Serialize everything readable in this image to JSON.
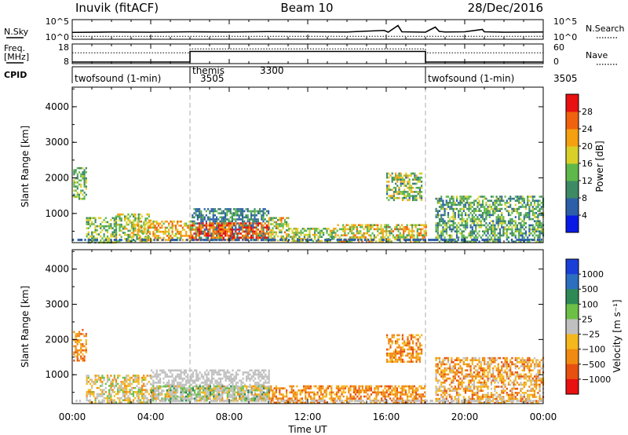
{
  "header": {
    "left_title": "Inuvik (fitACF)",
    "center_title": "Beam 10",
    "right_title": "28/Dec/2016"
  },
  "chart_data": [
    {
      "type": "line",
      "panel": "noise",
      "left_label": "N.Sky",
      "right_label": "N.Search",
      "left_ticks": [
        "10^5",
        "10^0"
      ],
      "right_ticks": [
        "10^5",
        "10^0"
      ],
      "x": [
        0,
        2,
        4,
        6,
        8,
        10,
        12,
        14,
        15.9,
        16.1,
        16.6,
        16.8,
        17.5,
        18.0,
        18.5,
        18.7,
        19,
        20,
        20.9,
        21,
        22,
        24
      ],
      "sky_level": [
        0.35,
        0.37,
        0.36,
        0.38,
        0.37,
        0.39,
        0.38,
        0.37,
        0.45,
        0.36,
        0.7,
        0.38,
        0.37,
        0.36,
        0.62,
        0.4,
        0.37,
        0.38,
        0.5,
        0.38,
        0.36,
        0.37
      ],
      "search_level": 0.15
    },
    {
      "type": "line",
      "panel": "frequency",
      "left_label": "Freq.",
      "left_unit": "[MHz]",
      "right_label": "Nave",
      "left_ticks": [
        "18",
        "8"
      ],
      "right_ticks": [
        "60",
        "0"
      ],
      "segments": [
        {
          "from": 0,
          "to": 6,
          "freq_level": 0.08,
          "nave_level": 0.55
        },
        {
          "from": 6,
          "to": 18,
          "freq_level": 0.62,
          "nave_level": 0.75
        },
        {
          "from": 18,
          "to": 24,
          "freq_level": 0.08,
          "nave_level": 0.55
        }
      ]
    },
    {
      "type": "table",
      "panel": "cpid",
      "label": "CPID",
      "entries": [
        {
          "start": 0,
          "name": "twofsound (1-min)",
          "id": "3505"
        },
        {
          "start": 6,
          "name": "themis",
          "id": "3300"
        },
        {
          "start": 18,
          "name": "twofsound (1-min)",
          "id": "3505"
        }
      ]
    },
    {
      "type": "heatmap",
      "panel": "power",
      "ylabel": "Slant Range [km]",
      "ylim": [
        180,
        4550
      ],
      "yticks": [
        1000,
        2000,
        3000,
        4000
      ],
      "colorbar_label": "Power [dB]",
      "colorbar_ticks": [
        4,
        8,
        12,
        16,
        20,
        24,
        28
      ],
      "colorbar_range": [
        0,
        32
      ],
      "colors": [
        "#0a1ae6",
        "#2c5fa8",
        "#3d8a64",
        "#5fb84a",
        "#d8d028",
        "#f5a010",
        "#f0620e",
        "#e81010"
      ],
      "regions": [
        {
          "t": [
            0.05,
            0.7
          ],
          "r": [
            1400,
            2300
          ],
          "v": [
            8,
            18
          ]
        },
        {
          "t": [
            0.7,
            2.2
          ],
          "r": [
            200,
            900
          ],
          "v": [
            8,
            20
          ]
        },
        {
          "t": [
            2.2,
            4.0
          ],
          "r": [
            200,
            1000
          ],
          "v": [
            10,
            22
          ]
        },
        {
          "t": [
            3.3,
            6.0
          ],
          "r": [
            250,
            800
          ],
          "v": [
            14,
            28
          ]
        },
        {
          "t": [
            6.0,
            10.0
          ],
          "r": [
            250,
            1150
          ],
          "v": [
            4,
            14
          ]
        },
        {
          "t": [
            6.0,
            10.0
          ],
          "r": [
            250,
            750
          ],
          "v": [
            20,
            32
          ]
        },
        {
          "t": [
            10.0,
            11.0
          ],
          "r": [
            250,
            900
          ],
          "v": [
            10,
            26
          ]
        },
        {
          "t": [
            11.0,
            13.5
          ],
          "r": [
            200,
            600
          ],
          "v": [
            8,
            22
          ]
        },
        {
          "t": [
            13.5,
            18.0
          ],
          "r": [
            200,
            700
          ],
          "v": [
            10,
            26
          ]
        },
        {
          "t": [
            16.0,
            17.8
          ],
          "r": [
            1350,
            2150
          ],
          "v": [
            6,
            22
          ]
        },
        {
          "t": [
            18.5,
            24.0
          ],
          "r": [
            200,
            1500
          ],
          "v": [
            6,
            18
          ]
        }
      ]
    },
    {
      "type": "heatmap",
      "panel": "velocity",
      "ylabel": "Slant Range [km]",
      "ylim": [
        180,
        4550
      ],
      "yticks": [
        1000,
        2000,
        3000,
        4000
      ],
      "xlabel": "Time UT",
      "xlim": [
        0,
        24
      ],
      "xticks": [
        "00:00",
        "04:00",
        "08:00",
        "12:00",
        "16:00",
        "20:00",
        "00:00"
      ],
      "colorbar_label": "Velocity [m s⁻¹]",
      "colorbar_ticks": [
        "1000",
        "500",
        "100",
        "25",
        "−25",
        "−100",
        "−500",
        "−1000"
      ],
      "colors": [
        "#1a3fd8",
        "#2c6ec0",
        "#2e8a54",
        "#6cc046",
        "#c0c0c0",
        "#f5b81c",
        "#f08a10",
        "#e85010",
        "#e81010"
      ],
      "regions": [
        {
          "t": [
            0.05,
            0.7
          ],
          "r": [
            1400,
            2300
          ],
          "c": [
            5,
            7
          ]
        },
        {
          "t": [
            0.7,
            4.0
          ],
          "r": [
            200,
            1000
          ],
          "c": [
            3,
            6
          ]
        },
        {
          "t": [
            4.0,
            10.0
          ],
          "r": [
            300,
            1150
          ],
          "c": [
            4,
            4
          ]
        },
        {
          "t": [
            4.0,
            10.0
          ],
          "r": [
            250,
            700
          ],
          "c": [
            2,
            6
          ]
        },
        {
          "t": [
            10.0,
            18.0
          ],
          "r": [
            200,
            700
          ],
          "c": [
            5,
            7
          ]
        },
        {
          "t": [
            16.0,
            17.8
          ],
          "r": [
            1350,
            2150
          ],
          "c": [
            5,
            7
          ]
        },
        {
          "t": [
            18.5,
            24.0
          ],
          "r": [
            200,
            1500
          ],
          "c": [
            4,
            7
          ]
        }
      ]
    }
  ]
}
